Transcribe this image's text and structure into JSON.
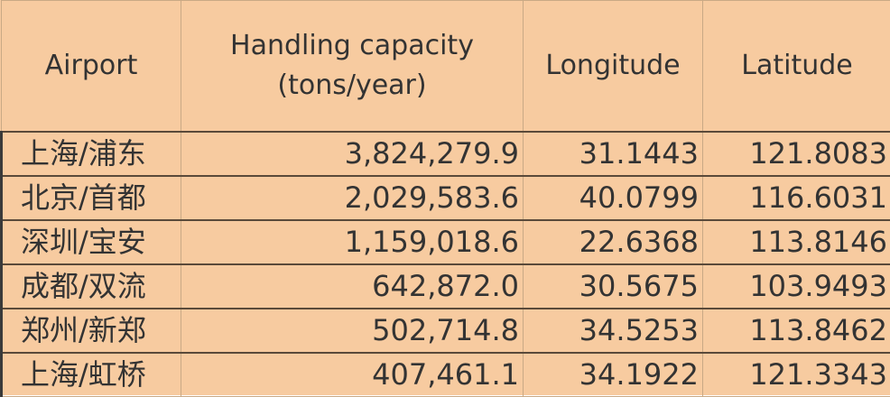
{
  "table": {
    "headers": {
      "airport": "Airport",
      "capacity_line1": "Handling capacity",
      "capacity_line2": "(tons/year)",
      "longitude": "Longitude",
      "latitude": "Latitude"
    },
    "rows": [
      {
        "airport": "上海/浦东",
        "capacity": "3,824,279.9",
        "longitude": "31.1443",
        "latitude": "121.8083"
      },
      {
        "airport": "北京/首都",
        "capacity": "2,029,583.6",
        "longitude": "40.0799",
        "latitude": "116.6031"
      },
      {
        "airport": "深圳/宝安",
        "capacity": "1,159,018.6",
        "longitude": "22.6368",
        "latitude": "113.8146"
      },
      {
        "airport": "成都/双流",
        "capacity": "642,872.0",
        "longitude": "30.5675",
        "latitude": "103.9493"
      },
      {
        "airport": "郑州/新郑",
        "capacity": "502,714.8",
        "longitude": "34.5253",
        "latitude": "113.8462"
      },
      {
        "airport": "上海/虹桥",
        "capacity": "407,461.1",
        "longitude": "34.1922",
        "latitude": "121.3343"
      }
    ]
  }
}
